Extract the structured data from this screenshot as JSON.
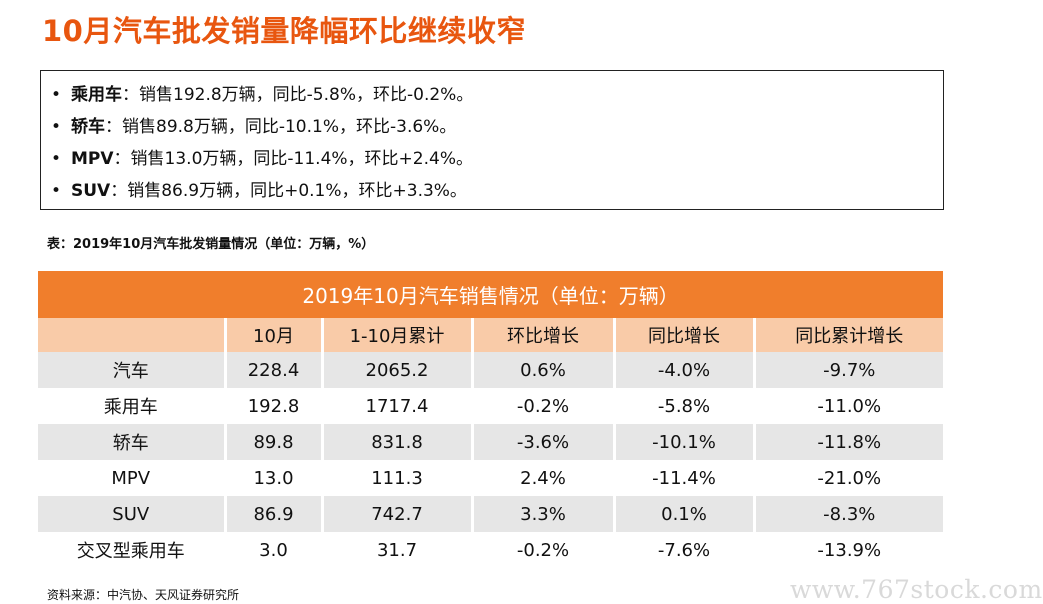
{
  "title": "10月汽车批发销量降幅环比继续收窄",
  "bullet_symbol": "•",
  "bullets": [
    {
      "name": "乘用车",
      "text": "：销售192.8万辆，同比-5.8%，环比-0.2%。"
    },
    {
      "name": "轿车",
      "text": "：销售89.8万辆，同比-10.1%，环比-3.6%。"
    },
    {
      "name": "MPV",
      "text": "：销售13.0万辆，同比-11.4%，环比+2.4%。"
    },
    {
      "name": "SUV",
      "text": "：销售86.9万辆，同比+0.1%，环比+3.3%。"
    }
  ],
  "caption": "表：2019年10月汽车批发销量情况（单位：万辆，%）",
  "table": {
    "title": "2019年10月汽车销售情况（单位：万辆）",
    "headers": [
      "",
      "10月",
      "1-10月累计",
      "环比增长",
      "同比增长",
      "同比累计增长"
    ],
    "rows": [
      [
        "汽车",
        "228.4",
        "2065.2",
        "0.6%",
        "-4.0%",
        "-9.7%"
      ],
      [
        "乘用车",
        "192.8",
        "1717.4",
        "-0.2%",
        "-5.8%",
        "-11.0%"
      ],
      [
        "轿车",
        "89.8",
        "831.8",
        "-3.6%",
        "-10.1%",
        "-11.8%"
      ],
      [
        "MPV",
        "13.0",
        "111.3",
        "2.4%",
        "-11.4%",
        "-21.0%"
      ],
      [
        "SUV",
        "86.9",
        "742.7",
        "3.3%",
        "0.1%",
        "-8.3%"
      ],
      [
        "交叉型乘用车",
        "3.0",
        "31.7",
        "-0.2%",
        "-7.6%",
        "-13.9%"
      ]
    ]
  },
  "source": "资料来源：中汽协、天风证券研究所",
  "watermark": "www.767stock.com",
  "colors": {
    "title": "#e8560f",
    "table_header": "#f07e2c",
    "subheader": "#f9cba8",
    "row_shade": "#e6e6e6"
  }
}
